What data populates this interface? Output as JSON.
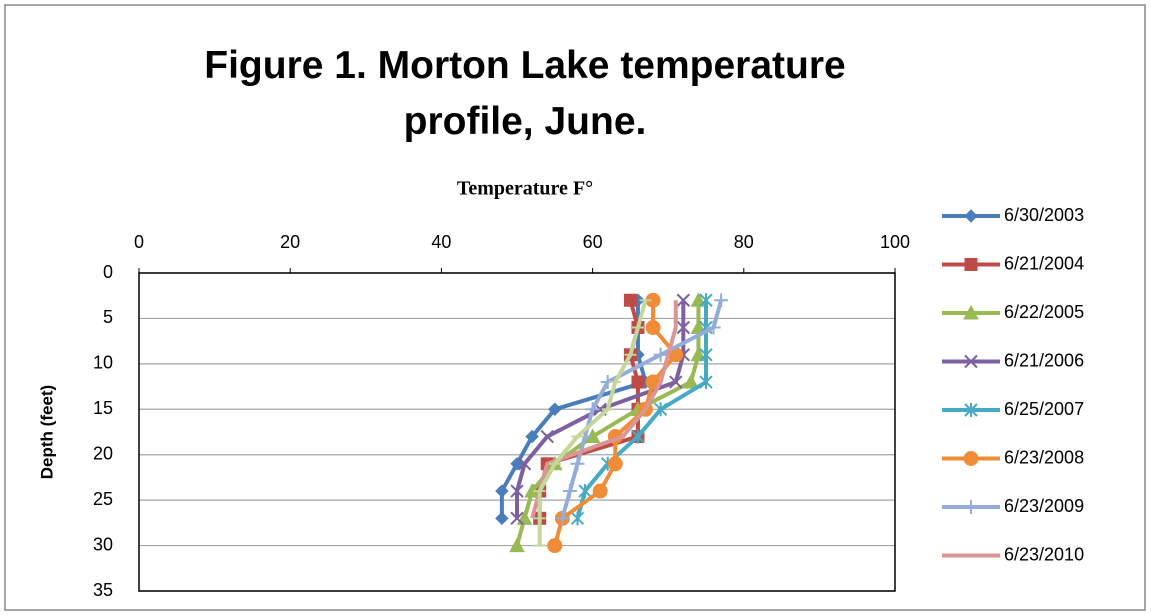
{
  "chart_data": {
    "type": "line",
    "title": "Figure 1. Morton Lake temperature profile, June.",
    "x_label": "Temperature F°",
    "y_label": "Depth (feet)",
    "y": [
      3,
      6,
      9,
      12,
      15,
      18,
      21,
      24,
      27,
      30
    ],
    "xlim": [
      0,
      100
    ],
    "xticks": [
      0,
      20,
      40,
      60,
      80,
      100
    ],
    "ylim": [
      0,
      35
    ],
    "yticks": [
      0,
      5,
      10,
      15,
      20,
      25,
      30,
      35
    ],
    "y_inverted": true,
    "x_axis_position": "top",
    "grid": true,
    "legend": "right",
    "series": [
      {
        "name": "6/30/2003",
        "color": "#4a7ebb",
        "marker": "diamond",
        "values": [
          66,
          66,
          66,
          67,
          55,
          52,
          50,
          48,
          48,
          null
        ]
      },
      {
        "name": "6/21/2004",
        "color": "#be4b48",
        "marker": "square",
        "values": [
          65,
          66,
          65,
          66,
          66,
          66,
          54,
          53,
          53,
          null
        ]
      },
      {
        "name": "6/22/2005",
        "color": "#98b954",
        "marker": "triangle",
        "values": [
          74,
          74,
          74,
          73,
          66,
          60,
          55,
          52,
          51,
          50
        ]
      },
      {
        "name": "6/21/2006",
        "color": "#7d60a0",
        "marker": "x",
        "values": [
          72,
          72,
          72,
          71,
          61,
          54,
          51,
          50,
          50,
          null
        ]
      },
      {
        "name": "6/25/2007",
        "color": "#46aac5",
        "marker": "star",
        "values": [
          75,
          75,
          75,
          75,
          69,
          66,
          62,
          59,
          58,
          null
        ]
      },
      {
        "name": "6/23/2008",
        "color": "#f08c38",
        "marker": "circle",
        "values": [
          68,
          68,
          71,
          68,
          67,
          63,
          63,
          61,
          56,
          55
        ]
      },
      {
        "name": "6/23/2009",
        "color": "#94acd8",
        "marker": "plus",
        "values": [
          77,
          76,
          69,
          62,
          60,
          59,
          58,
          57,
          56,
          null
        ]
      },
      {
        "name": "6/23/2010",
        "color": "#d99694",
        "marker": "none",
        "values": [
          71,
          71,
          70,
          69,
          67,
          64,
          54,
          53,
          52,
          null
        ]
      },
      {
        "color": "#c3d69b",
        "marker": "dash",
        "values": [
          67,
          66,
          65,
          63,
          62,
          58,
          55,
          53,
          53,
          53
        ]
      }
    ]
  }
}
